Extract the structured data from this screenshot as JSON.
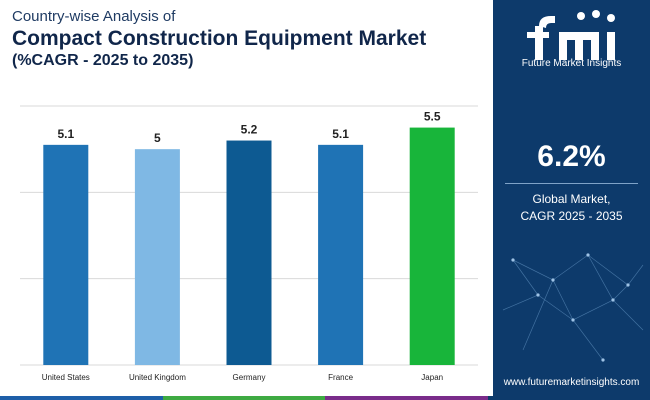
{
  "header": {
    "line1": "Country-wise Analysis of",
    "line2": "Compact Construction Equipment Market",
    "line3": "(%CAGR - 2025 to 2035)"
  },
  "chart_data": {
    "type": "bar",
    "categories": [
      "United States",
      "United Kingdom",
      "Germany",
      "France",
      "Japan"
    ],
    "values": [
      5.1,
      5,
      5.2,
      5.1,
      5.5
    ],
    "value_labels": [
      "5.1",
      "5",
      "5.2",
      "5.1",
      "5.5"
    ],
    "colors": [
      "#1f73b5",
      "#7fb8e4",
      "#0d5a92",
      "#1f73b5",
      "#18b53a"
    ],
    "title": "Compact Construction Equipment Market",
    "xlabel": "",
    "ylabel": "",
    "ylim": [
      0,
      6
    ],
    "grid": true
  },
  "side": {
    "brand": "Future Market Insights",
    "highlight": "6.2%",
    "desc_line1": "Global Market,",
    "desc_line2": "CAGR 2025 - 2035",
    "url": "www.futuremarketinsights.com"
  },
  "colors": {
    "panel": "#0d3a6b",
    "title": "#10264a",
    "strip": [
      "#1e5fa8",
      "#3eaa42",
      "#7a2c8a",
      "#0d3a6b"
    ]
  }
}
